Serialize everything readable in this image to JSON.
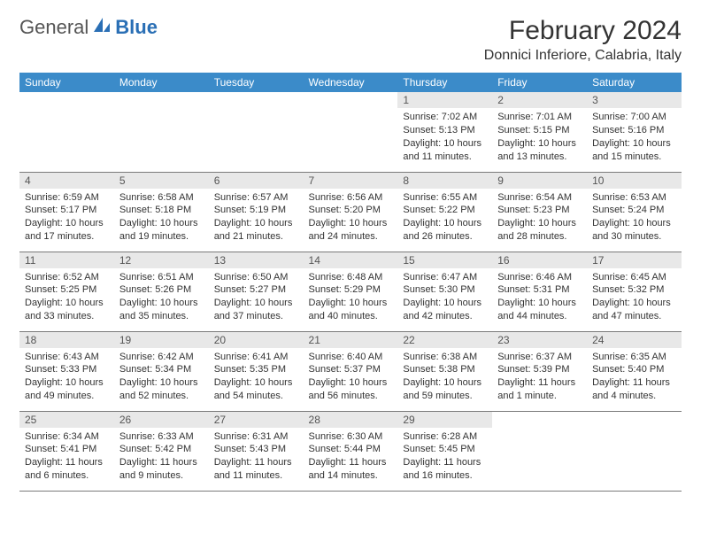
{
  "brand": {
    "text1": "General",
    "text2": "Blue"
  },
  "title": "February 2024",
  "location": "Donnici Inferiore, Calabria, Italy",
  "colors": {
    "header_bg": "#3b8bc9",
    "header_text": "#ffffff",
    "daynum_bg": "#e8e8e8",
    "border": "#7a7a7a",
    "brand_blue": "#2a6fb5"
  },
  "dayHeaders": [
    "Sunday",
    "Monday",
    "Tuesday",
    "Wednesday",
    "Thursday",
    "Friday",
    "Saturday"
  ],
  "weeks": [
    [
      null,
      null,
      null,
      null,
      {
        "n": "1",
        "sr": "7:02 AM",
        "ss": "5:13 PM",
        "dl": "10 hours and 11 minutes."
      },
      {
        "n": "2",
        "sr": "7:01 AM",
        "ss": "5:15 PM",
        "dl": "10 hours and 13 minutes."
      },
      {
        "n": "3",
        "sr": "7:00 AM",
        "ss": "5:16 PM",
        "dl": "10 hours and 15 minutes."
      }
    ],
    [
      {
        "n": "4",
        "sr": "6:59 AM",
        "ss": "5:17 PM",
        "dl": "10 hours and 17 minutes."
      },
      {
        "n": "5",
        "sr": "6:58 AM",
        "ss": "5:18 PM",
        "dl": "10 hours and 19 minutes."
      },
      {
        "n": "6",
        "sr": "6:57 AM",
        "ss": "5:19 PM",
        "dl": "10 hours and 21 minutes."
      },
      {
        "n": "7",
        "sr": "6:56 AM",
        "ss": "5:20 PM",
        "dl": "10 hours and 24 minutes."
      },
      {
        "n": "8",
        "sr": "6:55 AM",
        "ss": "5:22 PM",
        "dl": "10 hours and 26 minutes."
      },
      {
        "n": "9",
        "sr": "6:54 AM",
        "ss": "5:23 PM",
        "dl": "10 hours and 28 minutes."
      },
      {
        "n": "10",
        "sr": "6:53 AM",
        "ss": "5:24 PM",
        "dl": "10 hours and 30 minutes."
      }
    ],
    [
      {
        "n": "11",
        "sr": "6:52 AM",
        "ss": "5:25 PM",
        "dl": "10 hours and 33 minutes."
      },
      {
        "n": "12",
        "sr": "6:51 AM",
        "ss": "5:26 PM",
        "dl": "10 hours and 35 minutes."
      },
      {
        "n": "13",
        "sr": "6:50 AM",
        "ss": "5:27 PM",
        "dl": "10 hours and 37 minutes."
      },
      {
        "n": "14",
        "sr": "6:48 AM",
        "ss": "5:29 PM",
        "dl": "10 hours and 40 minutes."
      },
      {
        "n": "15",
        "sr": "6:47 AM",
        "ss": "5:30 PM",
        "dl": "10 hours and 42 minutes."
      },
      {
        "n": "16",
        "sr": "6:46 AM",
        "ss": "5:31 PM",
        "dl": "10 hours and 44 minutes."
      },
      {
        "n": "17",
        "sr": "6:45 AM",
        "ss": "5:32 PM",
        "dl": "10 hours and 47 minutes."
      }
    ],
    [
      {
        "n": "18",
        "sr": "6:43 AM",
        "ss": "5:33 PM",
        "dl": "10 hours and 49 minutes."
      },
      {
        "n": "19",
        "sr": "6:42 AM",
        "ss": "5:34 PM",
        "dl": "10 hours and 52 minutes."
      },
      {
        "n": "20",
        "sr": "6:41 AM",
        "ss": "5:35 PM",
        "dl": "10 hours and 54 minutes."
      },
      {
        "n": "21",
        "sr": "6:40 AM",
        "ss": "5:37 PM",
        "dl": "10 hours and 56 minutes."
      },
      {
        "n": "22",
        "sr": "6:38 AM",
        "ss": "5:38 PM",
        "dl": "10 hours and 59 minutes."
      },
      {
        "n": "23",
        "sr": "6:37 AM",
        "ss": "5:39 PM",
        "dl": "11 hours and 1 minute."
      },
      {
        "n": "24",
        "sr": "6:35 AM",
        "ss": "5:40 PM",
        "dl": "11 hours and 4 minutes."
      }
    ],
    [
      {
        "n": "25",
        "sr": "6:34 AM",
        "ss": "5:41 PM",
        "dl": "11 hours and 6 minutes."
      },
      {
        "n": "26",
        "sr": "6:33 AM",
        "ss": "5:42 PM",
        "dl": "11 hours and 9 minutes."
      },
      {
        "n": "27",
        "sr": "6:31 AM",
        "ss": "5:43 PM",
        "dl": "11 hours and 11 minutes."
      },
      {
        "n": "28",
        "sr": "6:30 AM",
        "ss": "5:44 PM",
        "dl": "11 hours and 14 minutes."
      },
      {
        "n": "29",
        "sr": "6:28 AM",
        "ss": "5:45 PM",
        "dl": "11 hours and 16 minutes."
      },
      null,
      null
    ]
  ],
  "labels": {
    "sunrise": "Sunrise:",
    "sunset": "Sunset:",
    "daylight": "Daylight:"
  }
}
